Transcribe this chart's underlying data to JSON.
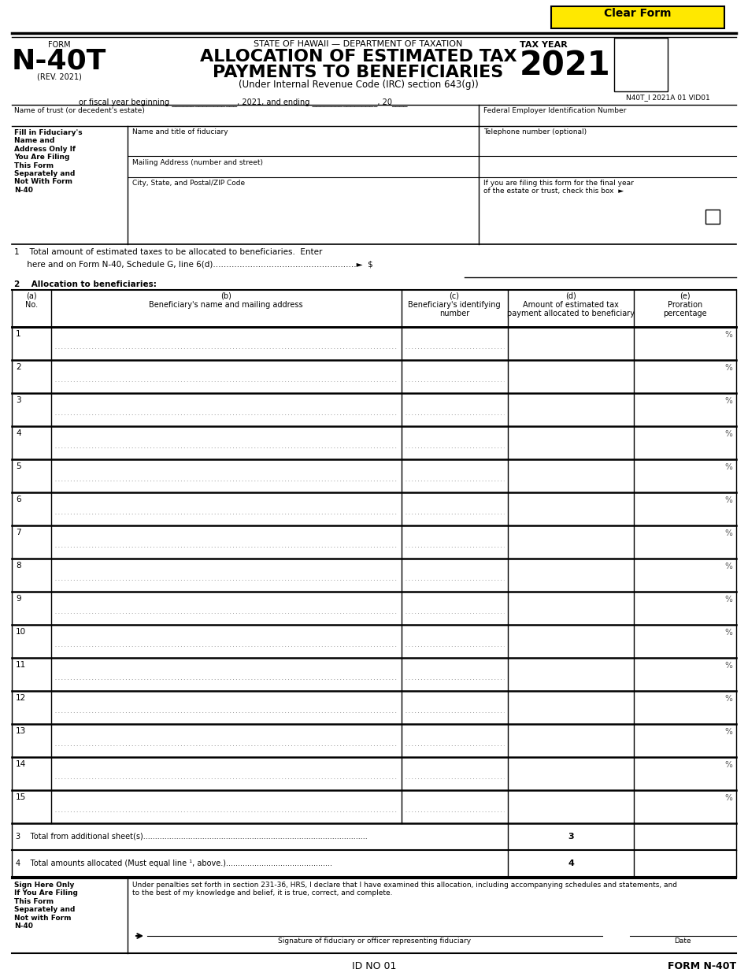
{
  "title_line1": "STATE OF HAWAII — DEPARTMENT OF TAXATION",
  "title_line2": "ALLOCATION OF ESTIMATED TAX",
  "title_line3": "PAYMENTS TO BENEFICIARIES",
  "title_line4": "(Under Internal Revenue Code (IRC) section 643(g))",
  "form_name": "N-40T",
  "form_label": "FORM",
  "form_rev": "(REV. 2021)",
  "tax_year_label": "TAX YEAR",
  "tax_year": "2021",
  "form_id": "N40T_I 2021A 01 VID01",
  "fiscal_year_text": "or fiscal year beginning _________________, 2021, and ending _________________, 20____",
  "clear_form_text": "Clear Form",
  "clear_form_bg": "#FFE800",
  "name_trust_label": "Name of trust (or decedent's estate)",
  "fein_label": "Federal Employer Identification Number",
  "fill_fiduciary_label": "Fill in Fiduciary's\nName and\nAddress Only If\nYou Are Filing\nThis Form\nSeparately and\nNot With Form\nN-40",
  "fiduciary_name_label": "Name and title of fiduciary",
  "telephone_label": "Telephone number (optional)",
  "mailing_label": "Mailing Address (number and street)",
  "city_label": "City, State, and Postal/ZIP Code",
  "final_year_label": "If you are filing this form for the final year\nof the estate or trust, check this box  ►",
  "line1_text1": "1    Total amount of estimated taxes to be allocated to beneficiaries.  Enter",
  "line1_text2": "     here and on Form N-40, Schedule G, line 6(d)......................................................►  $",
  "line2_text": "2    Allocation to beneficiaries:",
  "col_a_header": "(a)\nNo.",
  "col_b_header": "(b)\nBeneficiary's name and mailing address",
  "col_c_header": "(c)\nBeneficiary's identifying\nnumber",
  "col_d_header": "(d)\nAmount of estimated tax\npayment allocated to beneficiary",
  "col_e_header": "(e)\nProration\npercentage",
  "num_rows": 15,
  "line3_text": "3    Total from additional sheet(s)...............................................................................................",
  "line4_text": "4    Total amounts allocated (Must equal line ⁷ 1, above.).............................................",
  "sign_here_label": "Sign Here Only\nIf You Are Filing\nThis Form\nSeparately and\nNot with Form\nN-40",
  "sign_penalty_text": "Under penalties set forth in section 231-36, HRS, I declare that I have examined this allocation, including accompanying schedules and statements, and to the best of my knowledge and belief, it is true, correct, and complete.",
  "signature_label": "Signature of fiduciary or officer representing fiduciary",
  "date_label": "Date",
  "footer_id": "ID NO 01",
  "footer_form": "FORM N-40T",
  "bg_color": "#ffffff"
}
